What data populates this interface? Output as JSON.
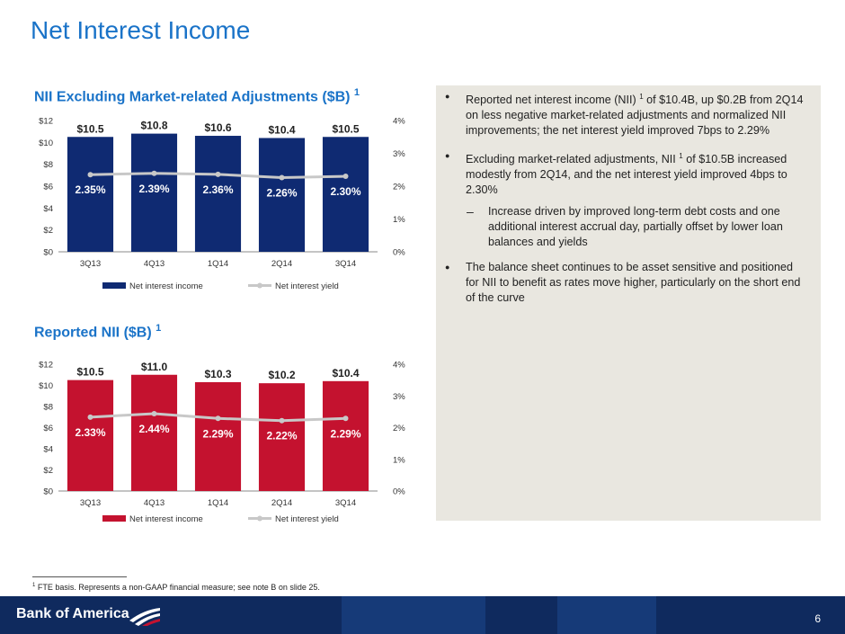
{
  "page_title": "Net Interest Income",
  "charts": [
    {
      "title": "NII Excluding Market-related Adjustments ($B)",
      "footnote_ref": "1",
      "color": "#0f2a72"
    },
    {
      "title": "Reported NII ($B)",
      "footnote_ref": "1",
      "color": "#c4122f"
    }
  ],
  "chart_data": [
    {
      "type": "bar",
      "title": "NII Excluding Market-related Adjustments ($B)",
      "categories": [
        "3Q13",
        "4Q13",
        "1Q14",
        "2Q14",
        "3Q14"
      ],
      "series": [
        {
          "name": "Net interest income",
          "type": "bar",
          "axis": "left",
          "values": [
            10.5,
            10.8,
            10.6,
            10.4,
            10.5
          ],
          "labels": [
            "$10.5",
            "$10.8",
            "$10.6",
            "$10.4",
            "$10.5"
          ]
        },
        {
          "name": "Net interest yield",
          "type": "line",
          "axis": "right",
          "values": [
            2.35,
            2.39,
            2.36,
            2.26,
            2.3
          ],
          "labels": [
            "2.35%",
            "2.39%",
            "2.36%",
            "2.26%",
            "2.30%"
          ]
        }
      ],
      "left_axis": {
        "ylim": [
          0,
          12
        ],
        "ticks": [
          "$0",
          "$2",
          "$4",
          "$6",
          "$8",
          "$10",
          "$12"
        ]
      },
      "right_axis": {
        "ylim": [
          0,
          4
        ],
        "ticks": [
          "0%",
          "1%",
          "2%",
          "3%",
          "4%"
        ]
      },
      "legend": "bottom",
      "grid": false
    },
    {
      "type": "bar",
      "title": "Reported NII ($B)",
      "categories": [
        "3Q13",
        "4Q13",
        "1Q14",
        "2Q14",
        "3Q14"
      ],
      "series": [
        {
          "name": "Net interest income",
          "type": "bar",
          "axis": "left",
          "values": [
            10.5,
            11.0,
            10.3,
            10.2,
            10.4
          ],
          "labels": [
            "$10.5",
            "$11.0",
            "$10.3",
            "$10.2",
            "$10.4"
          ]
        },
        {
          "name": "Net interest yield",
          "type": "line",
          "axis": "right",
          "values": [
            2.33,
            2.44,
            2.29,
            2.22,
            2.29
          ],
          "labels": [
            "2.33%",
            "2.44%",
            "2.29%",
            "2.22%",
            "2.29%"
          ]
        }
      ],
      "left_axis": {
        "ylim": [
          0,
          12
        ],
        "ticks": [
          "$0",
          "$2",
          "$4",
          "$6",
          "$8",
          "$10",
          "$12"
        ]
      },
      "right_axis": {
        "ylim": [
          0,
          4
        ],
        "ticks": [
          "0%",
          "1%",
          "2%",
          "3%",
          "4%"
        ]
      },
      "legend": "bottom",
      "grid": false
    }
  ],
  "bullets": [
    {
      "pre": "Reported net interest income (NII) ",
      "sup": "1",
      "post": " of $10.4B, up $0.2B from 2Q14 on less negative market-related adjustments and normalized NII improvements; the net interest yield improved 7bps to 2.29%"
    },
    {
      "pre": "Excluding market-related adjustments, NII ",
      "sup": "1",
      "post": " of $10.5B increased modestly from 2Q14, and the net interest yield improved 4bps to 2.30%"
    },
    {
      "pre": "Increase driven by improved long-term debt costs and one additional interest accrual day, partially offset by lower loan balances and yields",
      "sup": "",
      "post": ""
    },
    {
      "pre": "The balance sheet continues to be asset sensitive and positioned for NII to benefit as rates move higher, particularly on the short end of the curve",
      "sup": "",
      "post": ""
    }
  ],
  "footnote": {
    "sup": "1",
    "text": " FTE basis. Represents a non-GAAP financial measure; see note B on slide 25."
  },
  "footer": {
    "logo_text": "Bank of America",
    "page_number": "6"
  },
  "colors": {
    "accent_blue": "#1a73c8",
    "navy": "#0f2a72",
    "red": "#c4122f",
    "yield_line": "#c8c8c8",
    "panel": "#e9e7e0",
    "footer": "#0f2a5e"
  }
}
